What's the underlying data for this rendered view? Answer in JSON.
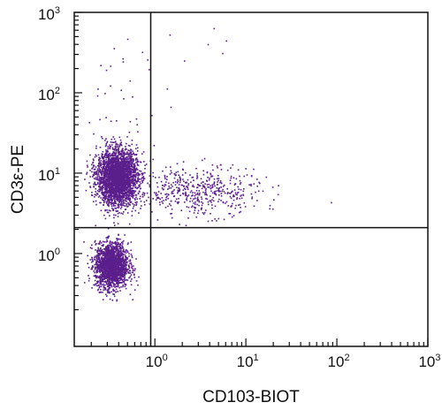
{
  "chart_data": {
    "type": "scatter",
    "xlabel": "CD103-BIOT",
    "ylabel": "CD3ε-PE",
    "x_scale": "log",
    "y_scale": "log",
    "xlim": [
      0.13,
      1000
    ],
    "ylim": [
      0.07,
      1000
    ],
    "x_ticks": [
      {
        "base": "10",
        "exp": "0",
        "value": 1
      },
      {
        "base": "10",
        "exp": "1",
        "value": 10
      },
      {
        "base": "10",
        "exp": "2",
        "value": 100
      },
      {
        "base": "10",
        "exp": "3",
        "value": 1000
      }
    ],
    "y_ticks": [
      {
        "base": "10",
        "exp": "0",
        "value": 1
      },
      {
        "base": "10",
        "exp": "1",
        "value": 10
      },
      {
        "base": "10",
        "exp": "2",
        "value": 100
      },
      {
        "base": "10",
        "exp": "3",
        "value": 1000
      }
    ],
    "quadrant_gates": {
      "x": 0.9,
      "y": 2.1
    },
    "grid": false,
    "dot_color": "#5b1f8c",
    "populations": [
      {
        "x_center": 0.38,
        "y_center": 9.0,
        "approx_events": 3000
      },
      {
        "x_center": 0.33,
        "y_center": 0.72,
        "approx_events": 2000
      },
      {
        "x_center": 3.0,
        "y_center": 6.0,
        "approx_events": 500
      },
      {
        "x_center": 0.5,
        "y_center": 60,
        "approx_events": 40
      },
      {
        "x_center": 5,
        "y_center": 500,
        "approx_events": 6
      }
    ]
  }
}
